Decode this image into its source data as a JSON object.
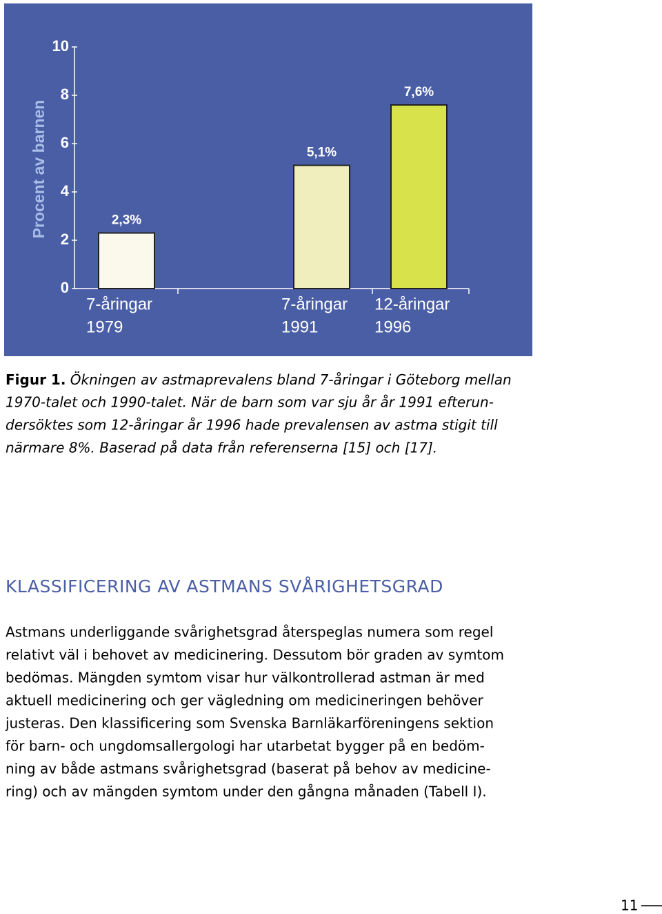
{
  "chart_data": {
    "type": "bar",
    "y_label": "Procent av barnen",
    "categories": [
      [
        "7-åringar",
        "1979"
      ],
      [
        "7-åringar",
        "1991"
      ],
      [
        "12-åringar",
        "1996"
      ]
    ],
    "values": [
      2.3,
      5.1,
      7.6
    ],
    "value_labels": [
      "2,3%",
      "5,1%",
      "7,6%"
    ],
    "colors": [
      "#fbf9ec",
      "#f1eebd",
      "#d8e24a"
    ],
    "background": "#4a5ea6",
    "ylim": [
      0,
      10
    ],
    "yticks": [
      0,
      2,
      4,
      6,
      8,
      10
    ],
    "grid": false
  },
  "caption": {
    "label": "Figur 1.",
    "lines": [
      " Ökningen av astmaprevalens bland 7-åringar i Göteborg mellan",
      "1970-talet och 1990-talet. När de barn som var sju år år 1991 efterun-",
      "dersöktes som 12-åringar år 1996 hade prevalensen av astma stigit till",
      "närmare 8%. Baserad på data från referenserna  [15] och [17]."
    ]
  },
  "section": {
    "heading": "KLASSIFICERING AV ASTMANS SVÅRIGHETSGRAD",
    "lines": [
      "Astmans underliggande svårighetsgrad återspeglas numera som regel",
      "relativt väl i behovet av medicinering. Dessutom bör graden av symtom",
      "bedömas. Mängden symtom visar hur välkontrollerad astman är med",
      "aktuell medicinering och ger vägledning om medicineringen behöver",
      "justeras. Den klassificering som Svenska Barnläkarföreningens sektion",
      "för barn- och ungdomsallergologi har utarbetat bygger på en bedöm-",
      "ning av både astmans svårighetsgrad (baserat på behov av medicine-",
      "ring) och av mängden symtom under den gångna månaden (Tabell I)."
    ]
  },
  "page_number": "11"
}
